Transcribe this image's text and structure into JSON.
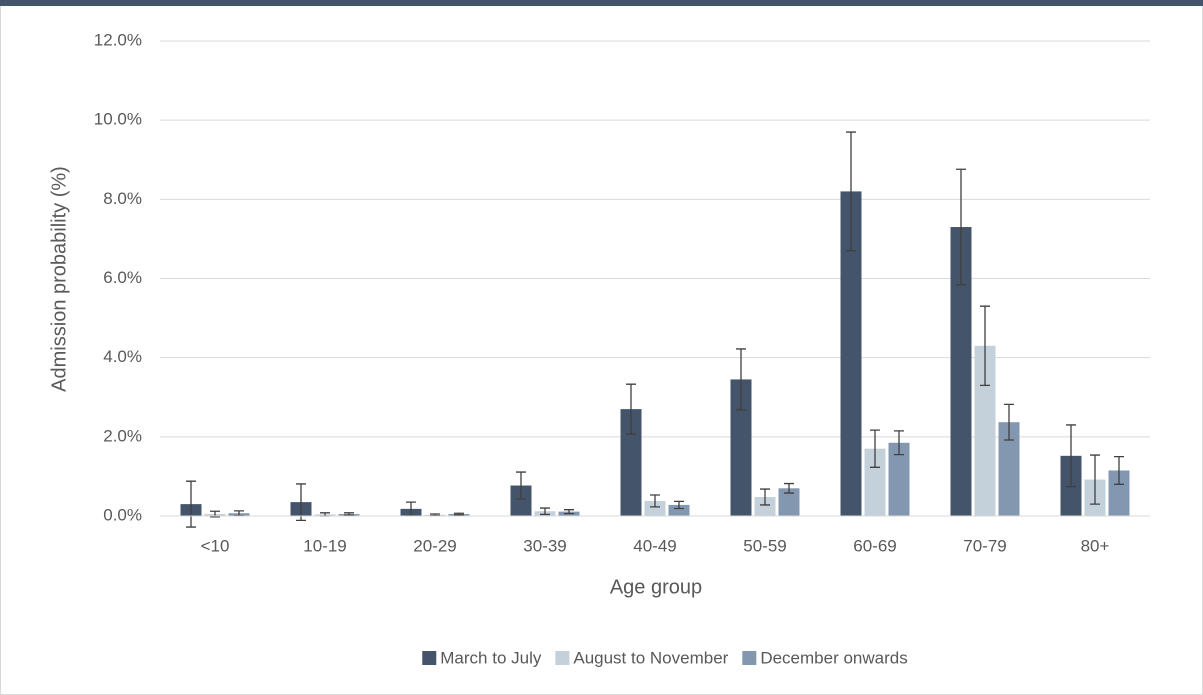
{
  "chart_data": {
    "type": "bar",
    "x_label": "Age group",
    "y_label": "Admission probability (%)",
    "categories": [
      "<10",
      "10-19",
      "20-29",
      "30-39",
      "40-49",
      "50-59",
      "60-69",
      "70-79",
      "80+"
    ],
    "series": [
      {
        "name": "March to July",
        "color": "#44546a",
        "values": [
          0.3,
          0.35,
          0.18,
          0.77,
          2.7,
          3.45,
          8.2,
          7.3,
          1.52
        ],
        "errors": [
          0.58,
          0.46,
          0.17,
          0.34,
          0.63,
          0.77,
          1.5,
          1.46,
          0.78
        ]
      },
      {
        "name": "August to November",
        "color": "#c4d0da",
        "values": [
          0.05,
          0.04,
          0.03,
          0.12,
          0.38,
          0.48,
          1.7,
          4.3,
          0.92
        ],
        "errors": [
          0.07,
          0.04,
          0.02,
          0.08,
          0.15,
          0.2,
          0.47,
          1.0,
          0.62
        ]
      },
      {
        "name": "December onwards",
        "color": "#8497b0",
        "values": [
          0.07,
          0.05,
          0.05,
          0.11,
          0.28,
          0.7,
          1.85,
          2.37,
          1.15
        ],
        "errors": [
          0.06,
          0.03,
          0.02,
          0.05,
          0.09,
          0.12,
          0.3,
          0.45,
          0.35
        ]
      }
    ],
    "ylim": [
      0,
      12
    ],
    "yticks": [
      {
        "value": 0,
        "label": "0.0%"
      },
      {
        "value": 2,
        "label": "2.0%"
      },
      {
        "value": 4,
        "label": "4.0%"
      },
      {
        "value": 6,
        "label": "6.0%"
      },
      {
        "value": 8,
        "label": "8.0%"
      },
      {
        "value": 10,
        "label": "10.0%"
      },
      {
        "value": 12,
        "label": "12.0%"
      }
    ],
    "grid": true,
    "legend": "bottom"
  }
}
